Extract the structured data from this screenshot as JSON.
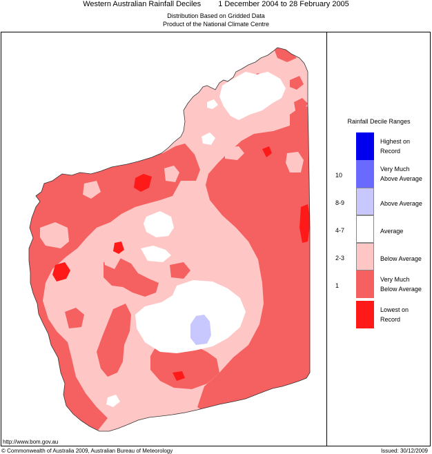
{
  "header": {
    "title": "Western Australian Rainfall Deciles",
    "period": "1 December 2004 to 28 February 2005",
    "subtitle1": "Distribution Based on Gridded Data",
    "subtitle2": "Product of the National Climate Centre"
  },
  "legend": {
    "title": "Rainfall Decile Ranges",
    "items": [
      {
        "label1": "Highest on",
        "label2": "Record",
        "range": "",
        "color": "#0000ee"
      },
      {
        "label1": "Very Much",
        "label2": "Above Average",
        "range": "10",
        "color": "#6a6aff"
      },
      {
        "label1": "Above Average",
        "label2": "",
        "range": "8-9",
        "color": "#c8c8ff"
      },
      {
        "label1": "Average",
        "label2": "",
        "range": "4-7",
        "color": "#ffffff"
      },
      {
        "label1": "Below Average",
        "label2": "",
        "range": "2-3",
        "color": "#ffc6c6"
      },
      {
        "label1": "Very Much",
        "label2": "Below Average",
        "range": "1",
        "color": "#f56060"
      },
      {
        "label1": "Lowest on",
        "label2": "Record",
        "range": "",
        "color": "#ff1a1a"
      }
    ]
  },
  "colors": {
    "below": "#ffc6c6",
    "very_much_below": "#f56060",
    "lowest": "#ff1a1a",
    "average": "#ffffff",
    "above": "#c8c8ff"
  },
  "footer": {
    "url": "http://www.bom.gov.au",
    "copyright": "© Commonwealth of Australia 2009, Australian Bureau of Meteorology",
    "issued": "Issued: 30/12/2009"
  }
}
